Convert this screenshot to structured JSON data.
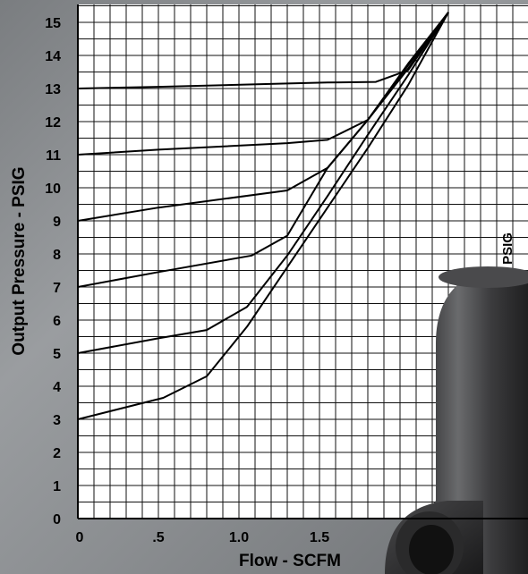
{
  "chart_data": {
    "type": "line",
    "xlabel": "Flow - SCFM",
    "ylabel": "Output Pressure - PSIG",
    "xlim": [
      0,
      2.4
    ],
    "ylim": [
      0,
      15.5
    ],
    "x_ticks": [
      {
        "value": 0,
        "label": "0"
      },
      {
        "value": 0.5,
        "label": ".5"
      },
      {
        "value": 1.0,
        "label": "1.0"
      },
      {
        "value": 1.5,
        "label": "1.5"
      }
    ],
    "y_ticks": [
      0,
      1,
      2,
      3,
      4,
      5,
      6,
      7,
      8,
      9,
      10,
      11,
      12,
      13,
      14,
      15
    ],
    "grid": true,
    "series": [
      {
        "points": [
          [
            0,
            3.0
          ],
          [
            0.53,
            3.65
          ],
          [
            0.8,
            4.3
          ],
          [
            1.05,
            5.8
          ],
          [
            1.3,
            7.6
          ],
          [
            1.55,
            9.4
          ],
          [
            1.8,
            11.2
          ],
          [
            2.05,
            13.1
          ],
          [
            2.3,
            15.3
          ]
        ]
      },
      {
        "points": [
          [
            0,
            5.0
          ],
          [
            0.5,
            5.45
          ],
          [
            0.8,
            5.7
          ],
          [
            1.05,
            6.4
          ],
          [
            1.3,
            7.95
          ],
          [
            1.55,
            9.75
          ],
          [
            1.8,
            11.6
          ],
          [
            2.05,
            13.4
          ],
          [
            2.3,
            15.3
          ]
        ]
      },
      {
        "points": [
          [
            0,
            7.0
          ],
          [
            0.5,
            7.45
          ],
          [
            1.08,
            7.95
          ],
          [
            1.3,
            8.55
          ],
          [
            1.55,
            10.6
          ],
          [
            1.8,
            12.05
          ],
          [
            2.05,
            13.6
          ],
          [
            2.3,
            15.3
          ]
        ]
      },
      {
        "points": [
          [
            0,
            9.0
          ],
          [
            0.5,
            9.4
          ],
          [
            1.3,
            9.92
          ],
          [
            1.55,
            10.6
          ],
          [
            1.8,
            12.05
          ],
          [
            2.05,
            13.7
          ],
          [
            2.3,
            15.3
          ]
        ]
      },
      {
        "points": [
          [
            0,
            11.0
          ],
          [
            0.5,
            11.15
          ],
          [
            1.3,
            11.35
          ],
          [
            1.55,
            11.45
          ],
          [
            1.8,
            12.05
          ],
          [
            2.05,
            13.75
          ],
          [
            2.3,
            15.3
          ]
        ]
      },
      {
        "points": [
          [
            0,
            13.0
          ],
          [
            0.5,
            13.05
          ],
          [
            1.3,
            13.15
          ],
          [
            1.55,
            13.18
          ],
          [
            1.85,
            13.2
          ],
          [
            2.05,
            13.55
          ],
          [
            2.3,
            15.3
          ]
        ]
      }
    ],
    "annotation": "PSIG"
  },
  "colors": {
    "plot_background": "#ffffff",
    "grid": "#111111",
    "series_line": "#000000"
  }
}
